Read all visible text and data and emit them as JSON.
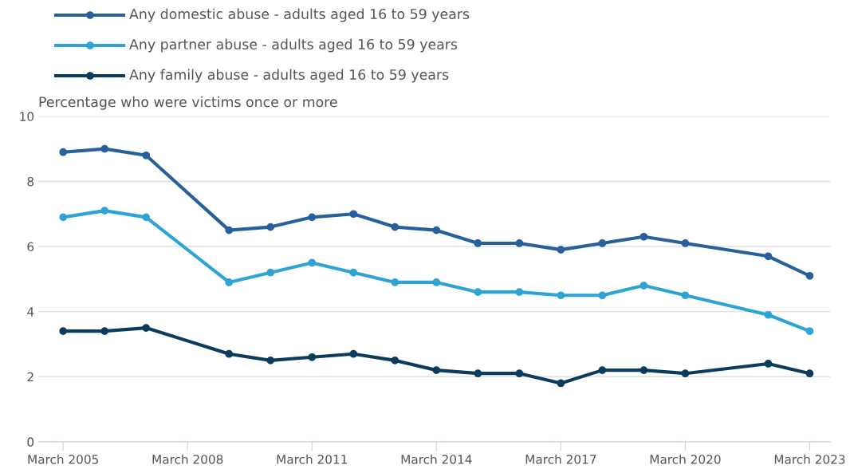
{
  "chart_data": {
    "type": "line",
    "ylabel": "Percentage who were victims once or more",
    "categories": [
      "March 2005",
      null,
      null,
      "March 2008",
      null,
      null,
      "March 2011",
      null,
      null,
      "March 2014",
      null,
      null,
      "March 2017",
      null,
      null,
      "March 2020",
      null,
      null,
      "March 2023"
    ],
    "series": [
      {
        "name": "Any domestic abuse - adults aged 16 to 59 years",
        "color": "#27609b",
        "values": [
          8.9,
          9.0,
          8.8,
          null,
          6.5,
          6.6,
          6.9,
          7.0,
          6.6,
          6.5,
          6.1,
          6.1,
          5.9,
          6.1,
          6.3,
          6.1,
          null,
          5.7,
          5.1
        ]
      },
      {
        "name": "Any partner abuse - adults aged 16 to 59 years",
        "color": "#2ea3d5",
        "values": [
          6.9,
          7.1,
          6.9,
          null,
          4.9,
          5.2,
          5.5,
          5.2,
          4.9,
          4.9,
          4.6,
          4.6,
          4.5,
          4.5,
          4.8,
          4.5,
          null,
          3.9,
          3.4
        ]
      },
      {
        "name": "Any family abuse - adults aged 16 to 59 years",
        "color": "#0b3c5d",
        "values": [
          3.4,
          3.4,
          3.5,
          null,
          2.7,
          2.5,
          2.6,
          2.7,
          2.5,
          2.2,
          2.1,
          2.1,
          1.8,
          2.2,
          2.2,
          2.1,
          null,
          2.4,
          2.1
        ]
      }
    ],
    "ylim": [
      0,
      10
    ],
    "yticks": [
      0,
      2,
      4,
      6,
      8,
      10
    ],
    "grid": "y",
    "legend": "top left",
    "marker": "circle",
    "line_style": "solid"
  }
}
